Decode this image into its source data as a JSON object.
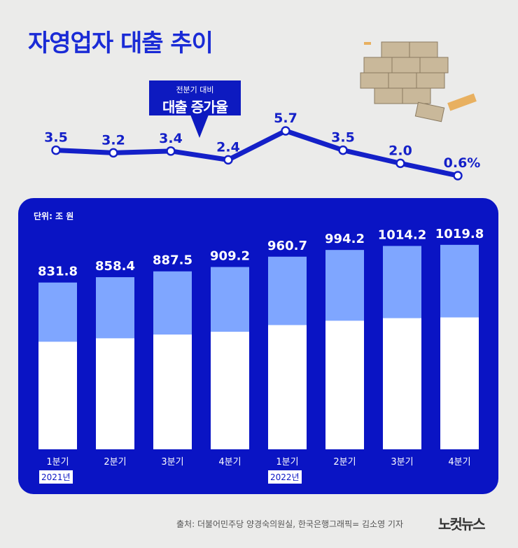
{
  "title": "자영업자 대출 추이",
  "callout": {
    "sub": "전분기 대비",
    "main": "대출 증가율"
  },
  "unit_label": "단위: 조 원",
  "years": [
    "2021년",
    "2022년"
  ],
  "footer": {
    "source": "출처: 더불어민주당 양경숙의원실, 한국은행",
    "credit": "그래픽= 김소영 기자",
    "logo": "노컷뉴스"
  },
  "colors": {
    "accent": "#0a14c4",
    "title": "#1a2bd6",
    "bar_light": "#7fa6ff",
    "bar_white": "#ffffff",
    "background": "#ebebea"
  },
  "chart_data": [
    {
      "type": "line",
      "title": "전분기 대비 대출 증가율",
      "categories": [
        "1분기",
        "2분기",
        "3분기",
        "4분기",
        "1분기",
        "2분기",
        "3분기",
        "4분기"
      ],
      "values": [
        3.5,
        3.2,
        3.4,
        2.4,
        5.7,
        3.5,
        2.0,
        0.6
      ],
      "labels": [
        "3.5",
        "3.2",
        "3.4",
        "2.4",
        "5.7",
        "3.5",
        "2.0",
        "0.6%"
      ],
      "ylabel": "%"
    },
    {
      "type": "bar",
      "title": "자영업자 대출 추이",
      "categories": [
        "1분기",
        "2분기",
        "3분기",
        "4분기",
        "1분기",
        "2분기",
        "3분기",
        "4분기"
      ],
      "values": [
        831.8,
        858.4,
        887.5,
        909.2,
        960.7,
        994.2,
        1014.2,
        1019.8
      ],
      "labels": [
        "831.8",
        "858.4",
        "887.5",
        "909.2",
        "960.7",
        "994.2",
        "1014.2",
        "1019.8"
      ],
      "ylabel": "조 원"
    }
  ]
}
